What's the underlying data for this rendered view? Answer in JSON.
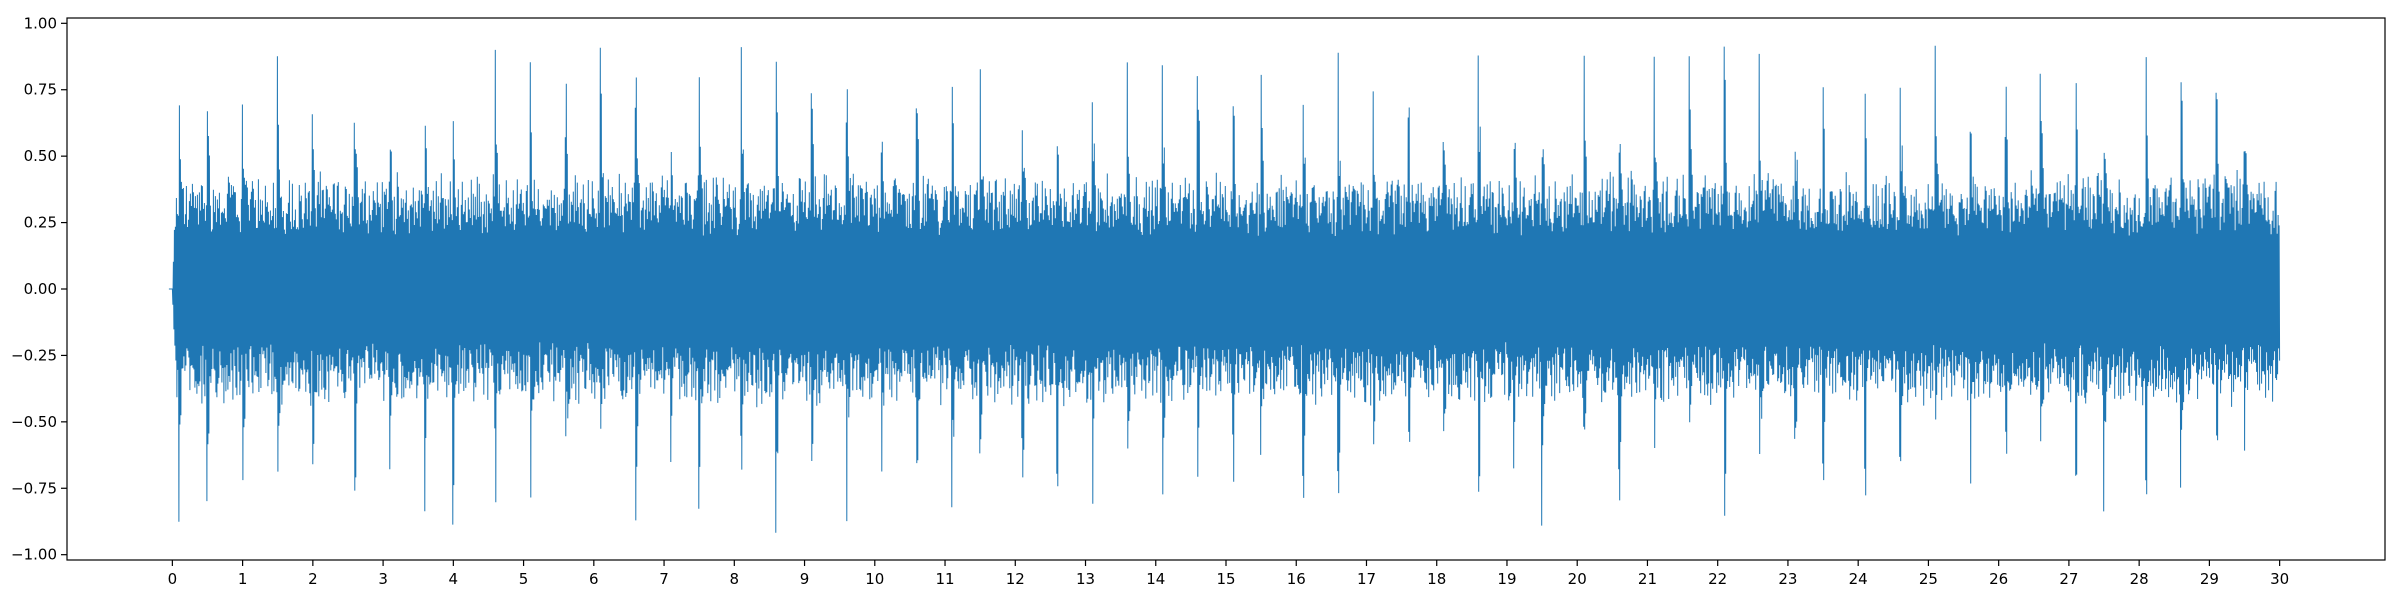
{
  "chart_data": {
    "type": "line",
    "title": "",
    "xlabel": "",
    "ylabel": "",
    "xlim": [
      -1.5,
      31.5
    ],
    "ylim": [
      -1.02,
      1.02
    ],
    "grid": false,
    "legend": "none",
    "x_ticks": [
      0,
      1,
      2,
      3,
      4,
      5,
      6,
      7,
      8,
      9,
      10,
      11,
      12,
      13,
      14,
      15,
      16,
      17,
      18,
      19,
      20,
      21,
      22,
      23,
      24,
      25,
      26,
      27,
      28,
      29,
      30
    ],
    "x_tick_labels": [
      "0",
      "1",
      "2",
      "3",
      "4",
      "5",
      "6",
      "7",
      "8",
      "9",
      "10",
      "11",
      "12",
      "13",
      "14",
      "15",
      "16",
      "17",
      "18",
      "19",
      "20",
      "21",
      "22",
      "23",
      "24",
      "25",
      "26",
      "27",
      "28",
      "29",
      "30"
    ],
    "y_ticks": [
      -1.0,
      -0.75,
      -0.5,
      -0.25,
      0.0,
      0.25,
      0.5,
      0.75,
      1.0
    ],
    "y_tick_labels": [
      "−1.00",
      "−0.75",
      "−0.50",
      "−0.25",
      "0.00",
      "0.25",
      "0.50",
      "0.75",
      "1.00"
    ],
    "series": [
      {
        "color": "#1f77b4",
        "x_range": [
          0,
          30
        ],
        "peak_amplitude": 0.93,
        "typical_amplitude": 0.45,
        "beat_times": [
          0.1,
          0.5,
          1.0,
          1.5,
          2.0,
          2.6,
          3.1,
          3.6,
          4.0,
          4.6,
          5.1,
          5.6,
          6.1,
          6.6,
          7.1,
          7.5,
          8.1,
          8.6,
          9.1,
          9.6,
          10.1,
          10.6,
          11.1,
          11.5,
          12.1,
          12.6,
          13.1,
          13.6,
          14.1,
          14.6,
          15.1,
          15.5,
          16.1,
          16.6,
          17.1,
          17.6,
          18.1,
          18.6,
          19.1,
          19.5,
          20.1,
          20.6,
          21.1,
          21.6,
          22.1,
          22.6,
          23.1,
          23.5,
          24.1,
          24.6,
          25.1,
          25.6,
          26.1,
          26.6,
          27.1,
          27.5,
          28.1,
          28.6,
          29.1,
          29.5
        ]
      }
    ]
  }
}
